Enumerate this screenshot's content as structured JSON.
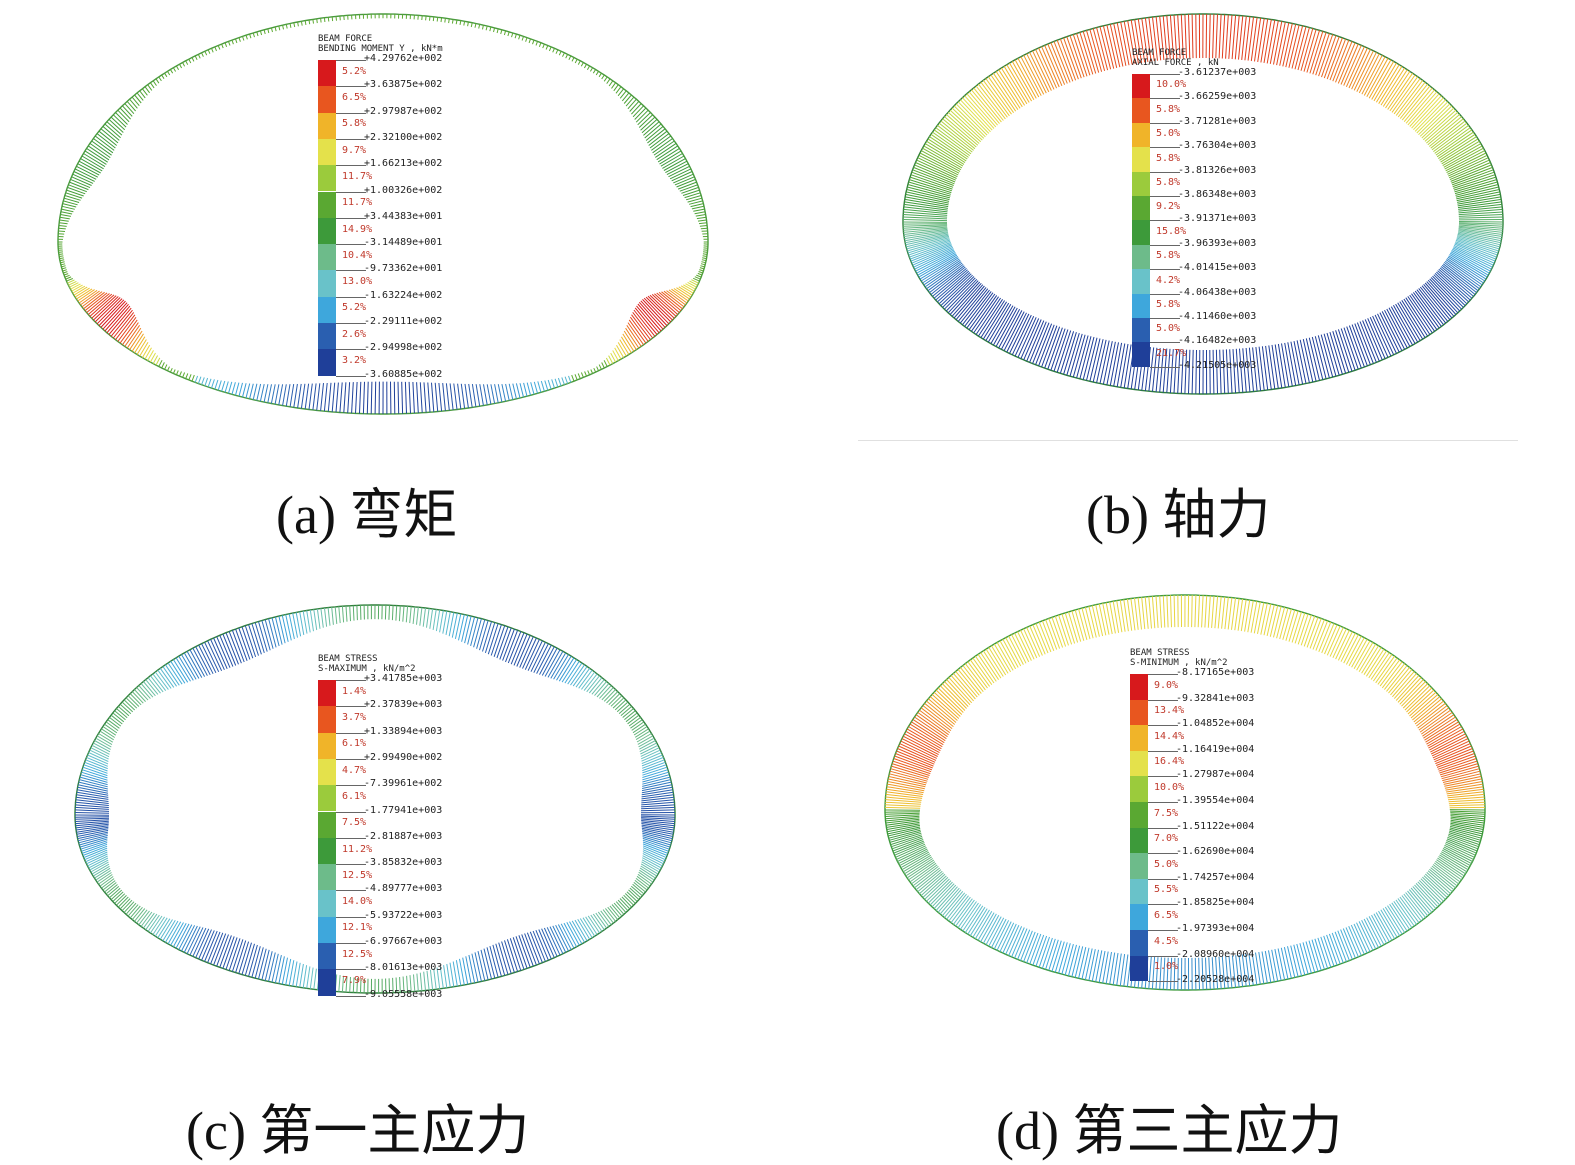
{
  "panels": [
    {
      "id": "a",
      "caption": "(a) 弯矩",
      "legend": {
        "line1": "BEAM FORCE",
        "line2": "BENDING MOMENT Y , kN*m",
        "values": [
          "+4.29762e+002",
          "+3.63875e+002",
          "+2.97987e+002",
          "+2.32100e+002",
          "+1.66213e+002",
          "+1.00326e+002",
          "+3.44383e+001",
          "-3.14489e+001",
          "-9.73362e+001",
          "-1.63224e+002",
          "-2.29111e+002",
          "-2.94998e+002",
          "-3.60885e+002"
        ],
        "percents": [
          "5.2%",
          "6.5%",
          "5.8%",
          "9.7%",
          "11.7%",
          "11.7%",
          "14.9%",
          "10.4%",
          "13.0%",
          "5.2%",
          "2.6%",
          "3.2%"
        ]
      }
    },
    {
      "id": "b",
      "caption": "(b) 轴力",
      "legend": {
        "line1": "BEAM FORCE",
        "line2": "AXIAL FORCE , kN",
        "values": [
          "-3.61237e+003",
          "-3.66259e+003",
          "-3.71281e+003",
          "-3.76304e+003",
          "-3.81326e+003",
          "-3.86348e+003",
          "-3.91371e+003",
          "-3.96393e+003",
          "-4.01415e+003",
          "-4.06438e+003",
          "-4.11460e+003",
          "-4.16482e+003",
          "-4.21505e+003"
        ],
        "percents": [
          "10.0%",
          "5.8%",
          "5.0%",
          "5.8%",
          "5.8%",
          "9.2%",
          "15.8%",
          "5.8%",
          "4.2%",
          "5.8%",
          "5.0%",
          "21.7%"
        ]
      }
    },
    {
      "id": "c",
      "caption": "(c) 第一主应力",
      "legend": {
        "line1": "BEAM STRESS",
        "line2": "S-MAXIMUM , kN/m^2",
        "values": [
          "+3.41785e+003",
          "+2.37839e+003",
          "+1.33894e+003",
          "+2.99490e+002",
          "-7.39961e+002",
          "-1.77941e+003",
          "-2.81887e+003",
          "-3.85832e+003",
          "-4.89777e+003",
          "-5.93722e+003",
          "-6.97667e+003",
          "-8.01613e+003",
          "-9.05558e+003"
        ],
        "percents": [
          "1.4%",
          "3.7%",
          "6.1%",
          "4.7%",
          "6.1%",
          "7.5%",
          "11.2%",
          "12.5%",
          "14.0%",
          "12.1%",
          "12.5%",
          "7.9%"
        ]
      }
    },
    {
      "id": "d",
      "caption": "(d) 第三主应力",
      "legend": {
        "line1": "BEAM STRESS",
        "line2": "S-MINIMUM , kN/m^2",
        "values": [
          "-8.17165e+003",
          "-9.32841e+003",
          "-1.04852e+004",
          "-1.16419e+004",
          "-1.27987e+004",
          "-1.39554e+004",
          "-1.51122e+004",
          "-1.62690e+004",
          "-1.74257e+004",
          "-1.85825e+004",
          "-1.97393e+004",
          "-2.08960e+004",
          "-2.20528e+004"
        ],
        "percents": [
          "9.0%",
          "13.4%",
          "14.4%",
          "16.4%",
          "10.0%",
          "7.5%",
          "7.0%",
          "5.0%",
          "5.5%",
          "6.5%",
          "4.5%",
          "1.0%"
        ]
      }
    }
  ],
  "colors": [
    "#d7191c",
    "#e8561f",
    "#f0b429",
    "#e4e14b",
    "#9bcb3c",
    "#5aa832",
    "#3d9a3a",
    "#6dbb8a",
    "#69c2c9",
    "#3ea7dc",
    "#2a5fb0",
    "#1f3f99"
  ]
}
